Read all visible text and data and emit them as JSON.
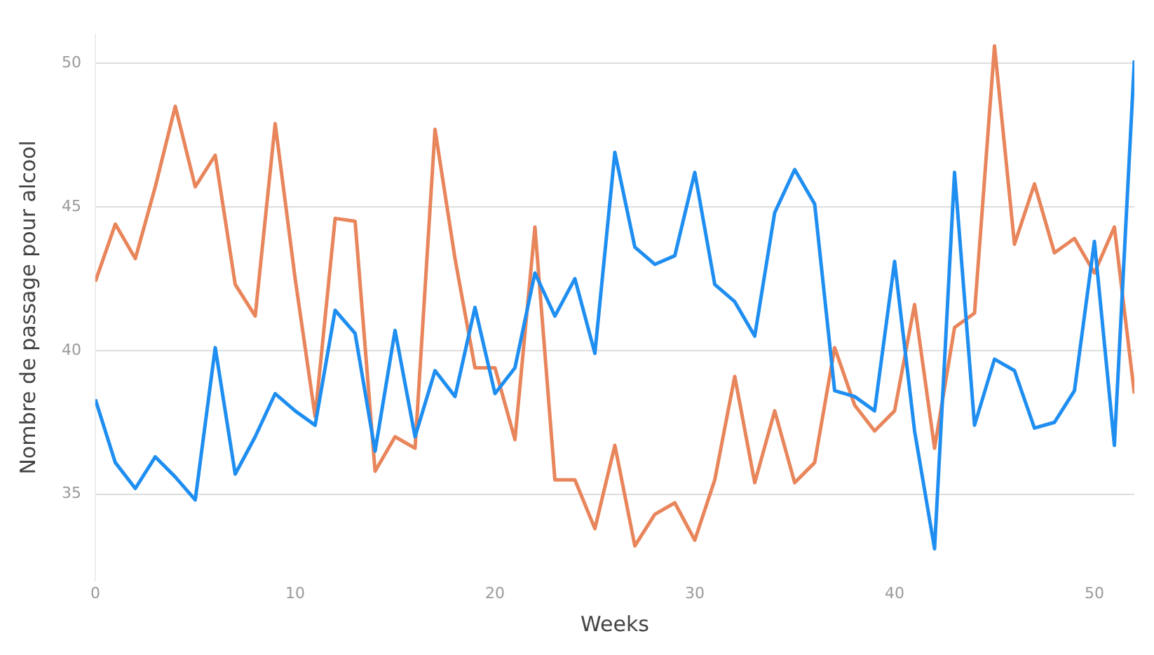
{
  "chart_data": {
    "type": "line",
    "xlabel": "Weeks",
    "ylabel": "Nombre de passage pour alcool",
    "x": [
      0,
      1,
      2,
      3,
      4,
      5,
      6,
      7,
      8,
      9,
      10,
      11,
      12,
      13,
      14,
      15,
      16,
      17,
      18,
      19,
      20,
      21,
      22,
      23,
      24,
      25,
      26,
      27,
      28,
      29,
      30,
      31,
      32,
      33,
      34,
      35,
      36,
      37,
      38,
      39,
      40,
      41,
      42,
      43,
      44,
      45,
      46,
      47,
      48,
      49,
      50,
      51,
      52
    ],
    "series": [
      {
        "color": "#1f8ef1",
        "values": [
          38.3,
          36.1,
          35.2,
          36.3,
          35.6,
          34.8,
          40.1,
          35.7,
          37.0,
          38.5,
          37.9,
          37.4,
          41.4,
          40.6,
          36.5,
          40.7,
          37.0,
          39.3,
          38.4,
          41.5,
          38.5,
          39.4,
          42.7,
          41.2,
          42.5,
          39.9,
          46.9,
          43.6,
          43.0,
          43.3,
          46.2,
          42.3,
          41.7,
          40.5,
          44.8,
          46.3,
          45.1,
          38.6,
          38.4,
          37.9,
          43.1,
          37.2,
          33.1,
          46.2,
          37.4,
          39.7,
          39.3,
          37.3,
          37.5,
          38.6,
          43.8,
          36.7,
          50.1
        ]
      },
      {
        "color": "#e8855b",
        "values": [
          42.4,
          44.4,
          43.2,
          45.7,
          48.5,
          45.7,
          46.8,
          42.3,
          41.2,
          47.9,
          42.5,
          37.7,
          44.6,
          44.5,
          35.8,
          37.0,
          36.6,
          47.7,
          43.2,
          39.4,
          39.4,
          36.9,
          44.3,
          35.5,
          35.5,
          33.8,
          36.7,
          33.2,
          34.3,
          34.7,
          33.4,
          35.5,
          39.1,
          35.4,
          37.9,
          35.4,
          36.1,
          40.1,
          38.1,
          37.2,
          37.9,
          41.6,
          36.6,
          40.8,
          41.3,
          50.6,
          43.7,
          45.8,
          43.4,
          43.9,
          42.7,
          44.3,
          38.5
        ]
      }
    ],
    "xlim": [
      0,
      52
    ],
    "xticks": [
      0,
      10,
      20,
      30,
      40,
      50
    ],
    "ylim": [
      32,
      51
    ],
    "yticks": [
      35,
      40,
      45,
      50
    ],
    "grid": "y",
    "legend": false,
    "marker": "none",
    "line_style": "solid"
  }
}
